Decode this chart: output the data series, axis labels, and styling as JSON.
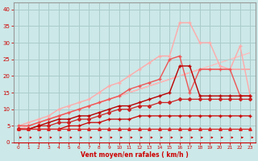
{
  "x": [
    0,
    1,
    2,
    3,
    4,
    5,
    6,
    7,
    8,
    9,
    10,
    11,
    12,
    13,
    14,
    15,
    16,
    17,
    18,
    19,
    20,
    21,
    22,
    23
  ],
  "lines": [
    {
      "y": [
        4,
        4,
        4,
        4,
        4,
        4,
        4,
        4,
        4,
        4,
        4,
        4,
        4,
        4,
        4,
        4,
        4,
        4,
        4,
        4,
        4,
        4,
        4,
        4
      ],
      "color": "#dd2222",
      "marker": "^",
      "markersize": 2.5,
      "linewidth": 0.9,
      "zorder": 5
    },
    {
      "y": [
        4,
        4,
        4,
        4,
        4,
        5,
        5,
        6,
        6,
        7,
        7,
        7,
        8,
        8,
        8,
        8,
        8,
        8,
        8,
        8,
        8,
        8,
        8,
        8
      ],
      "color": "#cc0000",
      "marker": "+",
      "markersize": 3,
      "linewidth": 0.9,
      "zorder": 4
    },
    {
      "y": [
        4,
        4,
        5,
        5,
        6,
        6,
        7,
        7,
        8,
        9,
        10,
        10,
        11,
        11,
        12,
        12,
        13,
        13,
        13,
        13,
        13,
        13,
        13,
        13
      ],
      "color": "#cc2222",
      "marker": "D",
      "markersize": 2,
      "linewidth": 0.9,
      "zorder": 4
    },
    {
      "y": [
        4,
        4,
        5,
        6,
        7,
        7,
        8,
        8,
        9,
        10,
        11,
        11,
        12,
        13,
        14,
        15,
        23,
        23,
        14,
        14,
        14,
        14,
        14,
        14
      ],
      "color": "#bb0000",
      "marker": "+",
      "markersize": 3,
      "linewidth": 1.0,
      "zorder": 4
    },
    {
      "y": [
        5,
        5,
        6,
        7,
        8,
        9,
        10,
        11,
        12,
        13,
        14,
        16,
        17,
        18,
        19,
        25,
        26,
        15,
        22,
        22,
        22,
        22,
        14,
        14
      ],
      "color": "#ee5555",
      "marker": "+",
      "markersize": 3,
      "linewidth": 1.0,
      "zorder": 3
    },
    {
      "y": [
        5,
        6,
        7,
        8,
        10,
        11,
        12,
        13,
        15,
        17,
        18,
        20,
        22,
        24,
        26,
        26,
        36,
        36,
        30,
        30,
        23,
        22,
        29,
        14
      ],
      "color": "#ffaaaa",
      "marker": "+",
      "markersize": 3,
      "linewidth": 1.0,
      "zorder": 2
    },
    {
      "y": [
        4,
        5,
        6,
        7,
        8,
        9,
        10,
        11,
        12,
        13,
        14,
        15,
        16,
        17,
        18,
        19,
        20,
        21,
        22,
        22,
        22,
        22,
        22,
        22
      ],
      "color": "#ff9999",
      "marker": null,
      "markersize": 0,
      "linewidth": 1.0,
      "zorder": 1
    },
    {
      "y": [
        4,
        5,
        6,
        7,
        8,
        9,
        10,
        11,
        12,
        13,
        14,
        15,
        16,
        17,
        18,
        19,
        20,
        21,
        22,
        23,
        24,
        25,
        26,
        27
      ],
      "color": "#ffbbbb",
      "marker": null,
      "markersize": 0,
      "linewidth": 0.9,
      "zorder": 1
    }
  ],
  "xlabel": "Vent moyen/en rafales ( km/h )",
  "ylim": [
    0,
    42
  ],
  "xlim": [
    -0.5,
    23.5
  ],
  "yticks": [
    0,
    5,
    10,
    15,
    20,
    25,
    30,
    35,
    40
  ],
  "xticks": [
    0,
    1,
    2,
    3,
    4,
    5,
    6,
    7,
    8,
    9,
    10,
    11,
    12,
    13,
    14,
    15,
    16,
    17,
    18,
    19,
    20,
    21,
    22,
    23
  ],
  "bg_color": "#cce8e8",
  "grid_color": "#aacccc",
  "text_color": "#cc0000",
  "axis_color": "#999999",
  "arrow_color": "#cc0000"
}
